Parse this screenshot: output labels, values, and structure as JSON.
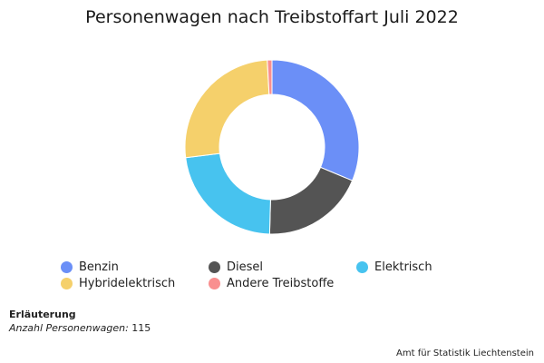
{
  "chart_data": {
    "type": "pie",
    "title": "Personenwagen nach Treibstoffart Juli 2022",
    "categories": [
      "Benzin",
      "Diesel",
      "Elektrisch",
      "Hybridelektrisch",
      "Andere Treibstoffe"
    ],
    "values": [
      36,
      22,
      26,
      30,
      1
    ],
    "colors": [
      "#6b8ff7",
      "#545454",
      "#47c3ef",
      "#f5d06b",
      "#f98f8f"
    ],
    "legend_position": "bottom"
  },
  "note": {
    "title": "Erläuterung",
    "label": "Anzahl Personenwagen:",
    "value": "115"
  },
  "source": "Amt für Statistik Liechtenstein"
}
